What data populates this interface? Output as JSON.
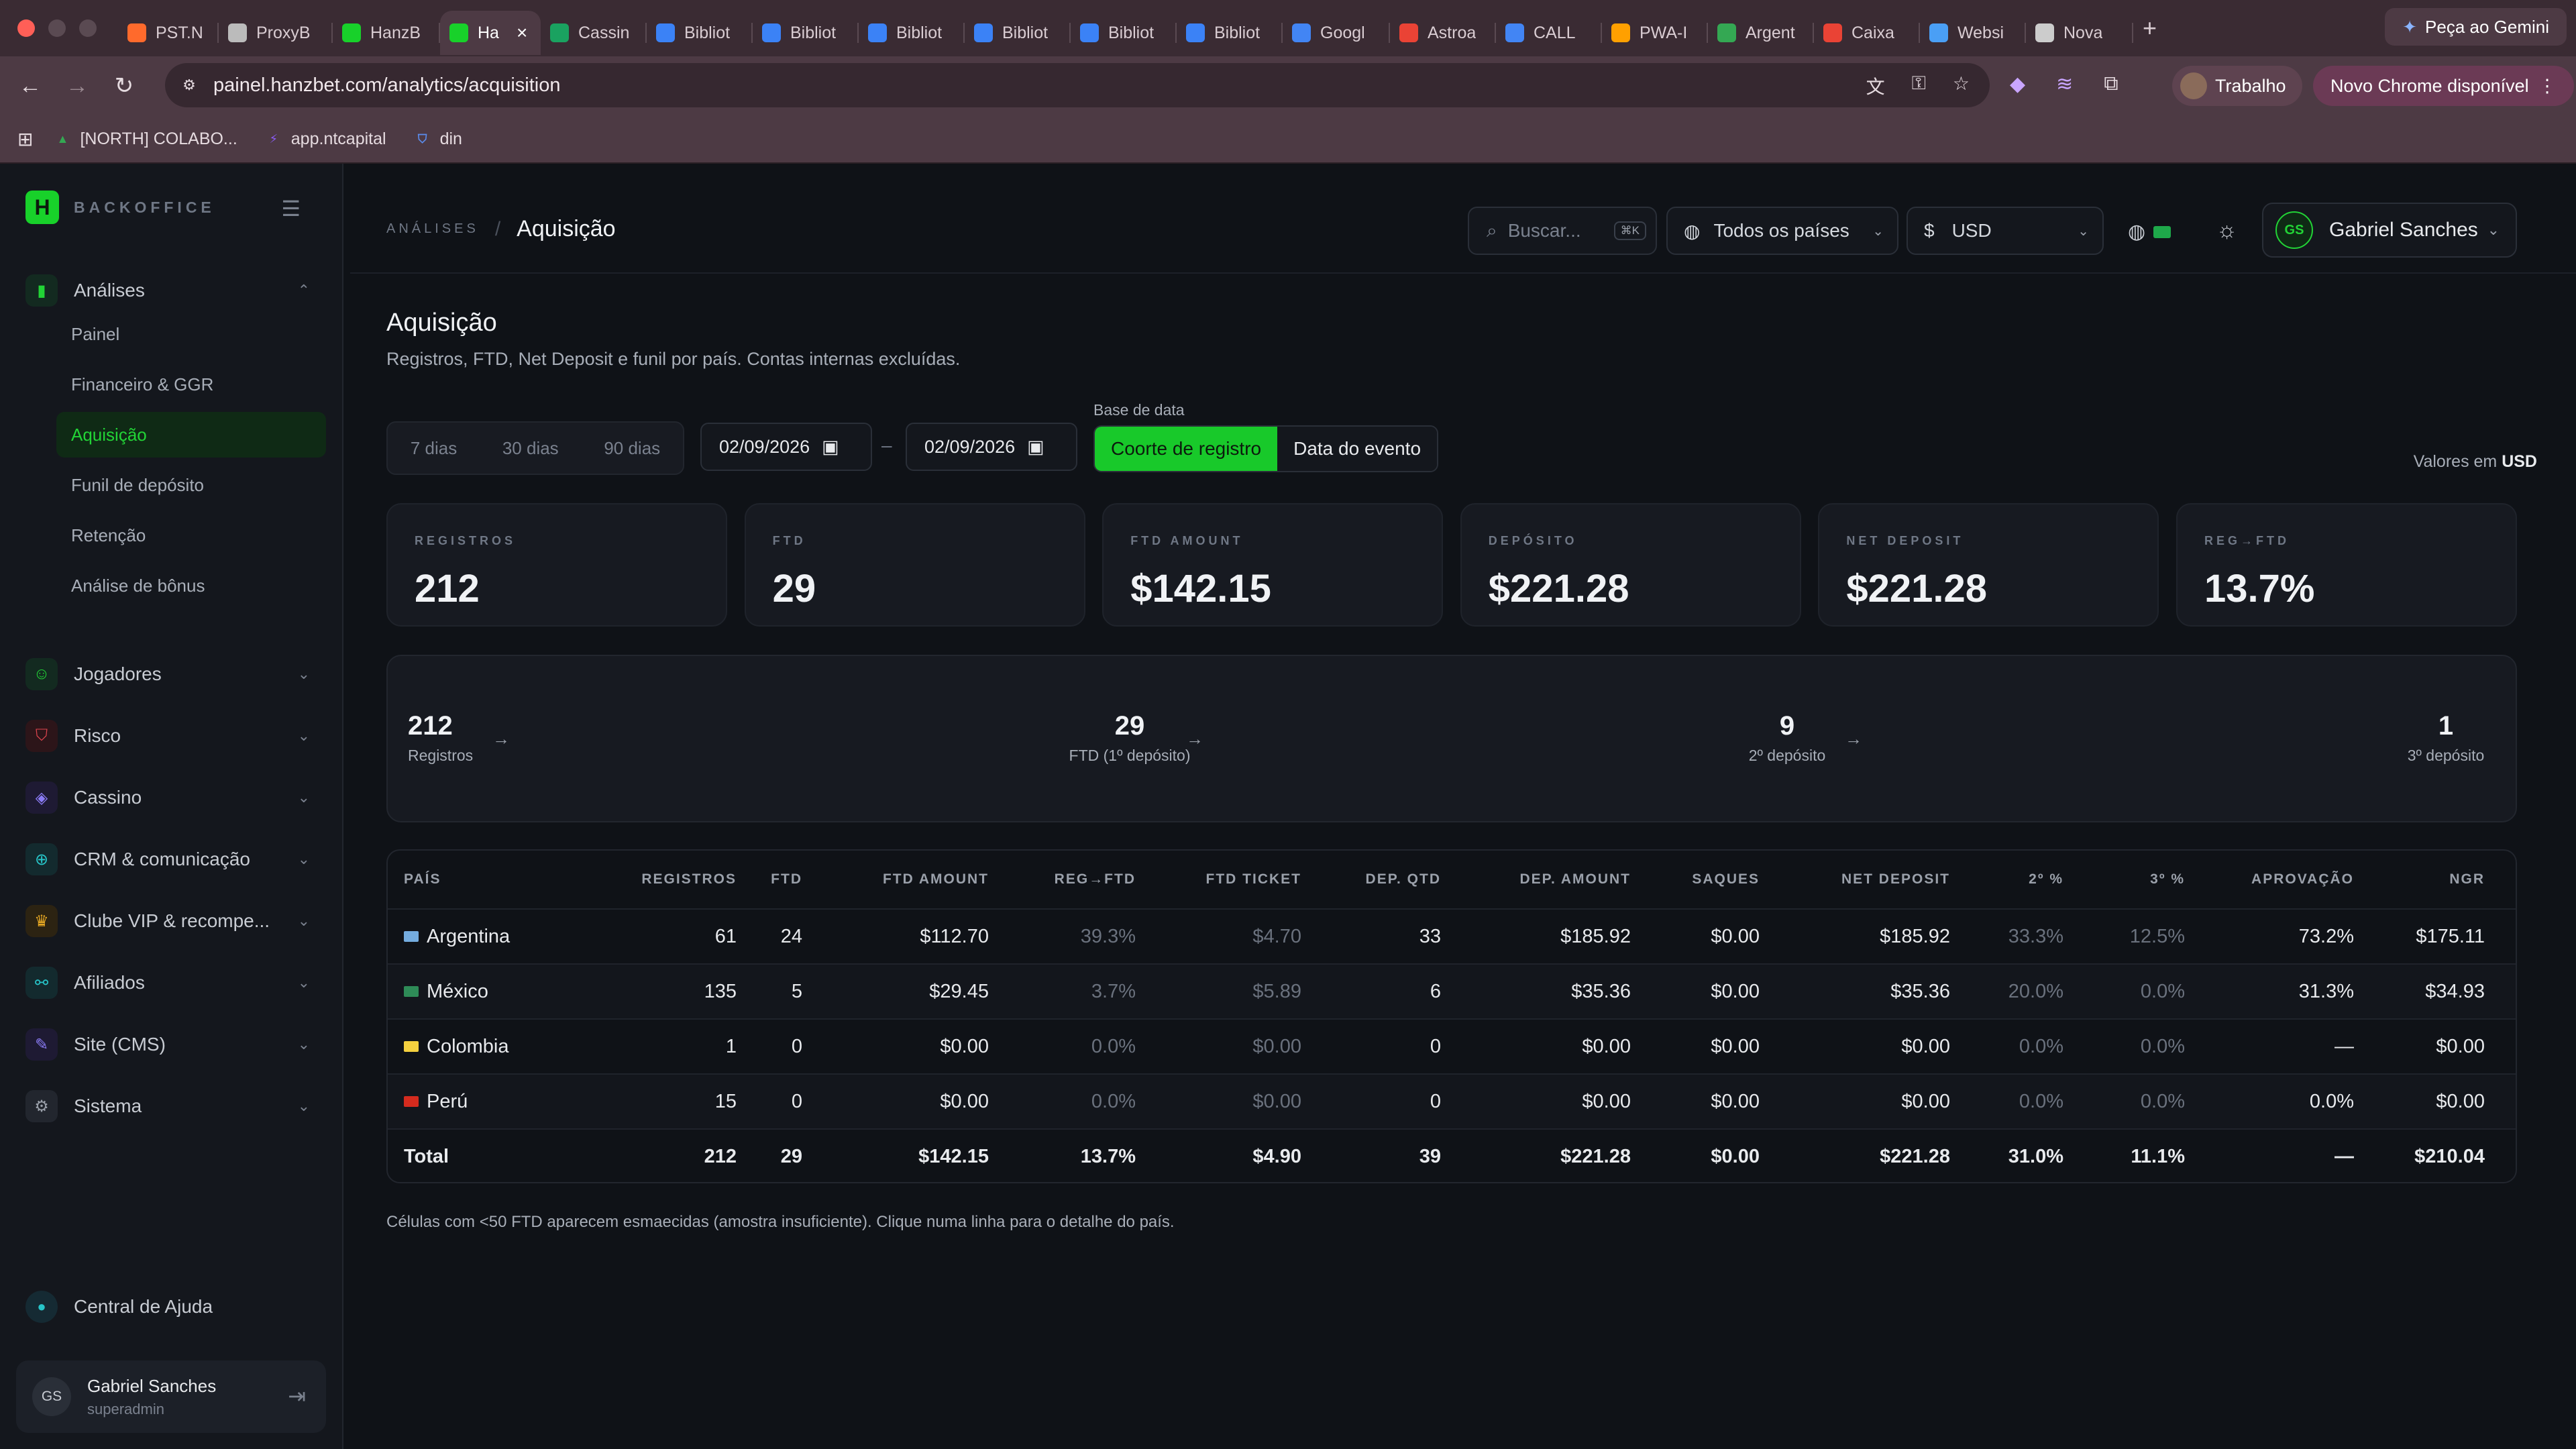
{
  "browser": {
    "tabs": [
      {
        "label": "PST.N",
        "favicon": "fire-icon",
        "color": "#ff6a2c"
      },
      {
        "label": "ProxyB",
        "favicon": "proxy-icon",
        "color": "#bbbbbb"
      },
      {
        "label": "HanzB",
        "favicon": "hanzbet-icon",
        "color": "#18d12a"
      },
      {
        "label": "Ha",
        "favicon": "hanzbet-icon",
        "color": "#18d12a",
        "active": true
      },
      {
        "label": "Cassin",
        "favicon": "sheet-icon",
        "color": "#1aa260"
      },
      {
        "label": "Bibliot",
        "favicon": "meta-icon",
        "color": "#3b82f6"
      },
      {
        "label": "Bibliot",
        "favicon": "meta-icon",
        "color": "#3b82f6"
      },
      {
        "label": "Bibliot",
        "favicon": "meta-icon",
        "color": "#3b82f6"
      },
      {
        "label": "Bibliot",
        "favicon": "meta-icon",
        "color": "#3b82f6"
      },
      {
        "label": "Bibliot",
        "favicon": "meta-icon",
        "color": "#3b82f6"
      },
      {
        "label": "Bibliot",
        "favicon": "meta-icon",
        "color": "#3b82f6"
      },
      {
        "label": "Googl",
        "favicon": "google-ads-icon",
        "color": "#4285f4"
      },
      {
        "label": "Astroa",
        "favicon": "gmail-icon",
        "color": "#ea4335"
      },
      {
        "label": "CALL",
        "favicon": "docs-icon",
        "color": "#4285f4"
      },
      {
        "label": "PWA-I",
        "favicon": "firebase-icon",
        "color": "#ffa000"
      },
      {
        "label": "Argent",
        "favicon": "drive-icon",
        "color": "#34a853"
      },
      {
        "label": "Caixa",
        "favicon": "gmail-icon",
        "color": "#ea4335"
      },
      {
        "label": "Websi",
        "favicon": "web-icon",
        "color": "#4a9ff5"
      },
      {
        "label": "Nova",
        "favicon": "chrome-icon",
        "color": "#cccccc"
      }
    ],
    "new_tab": "+",
    "gemini_label": "Peça ao Gemini",
    "url": "painel.hanzbet.com/analytics/acquisition",
    "profile_label": "Trabalho",
    "update_label": "Novo Chrome disponível",
    "bookmarks": [
      {
        "label": "[NORTH] COLABO...",
        "icon": "drive-icon"
      },
      {
        "label": "app.ntcapital",
        "icon": "bolt-icon"
      },
      {
        "label": "din",
        "icon": "shield-icon"
      }
    ]
  },
  "sidebar": {
    "brand": "BACKOFFICE",
    "groups": [
      {
        "label": "Análises",
        "icon": "chart-icon",
        "icon_color": "#22d336",
        "icon_bg": "#132a20",
        "expanded": true,
        "items": [
          "Painel",
          "Financeiro & GGR",
          "Aquisição",
          "Funil de depósito",
          "Retenção",
          "Análise de bônus"
        ],
        "active_item": "Aquisição"
      },
      {
        "label": "Jogadores",
        "icon": "user-icon",
        "icon_color": "#22d336",
        "icon_bg": "#132a20"
      },
      {
        "label": "Risco",
        "icon": "shield-icon",
        "icon_color": "#e0454f",
        "icon_bg": "#2c1519"
      },
      {
        "label": "Cassino",
        "icon": "gamepad-icon",
        "icon_color": "#8b7cf6",
        "icon_bg": "#1e1a33"
      },
      {
        "label": "CRM & comunicação",
        "icon": "crm-icon",
        "icon_color": "#27c4c8",
        "icon_bg": "#132a2e"
      },
      {
        "label": "Clube VIP & recompe...",
        "icon": "trophy-icon",
        "icon_color": "#e8a923",
        "icon_bg": "#2c2312"
      },
      {
        "label": "Afiliados",
        "icon": "affiliate-icon",
        "icon_color": "#27c4c8",
        "icon_bg": "#132a2e"
      },
      {
        "label": "Site (CMS)",
        "icon": "edit-icon",
        "icon_color": "#8b7cf6",
        "icon_bg": "#1e1a33"
      },
      {
        "label": "Sistema",
        "icon": "gear-icon",
        "icon_color": "#9aa0aa",
        "icon_bg": "#22262e"
      }
    ],
    "help_label": "Central de Ajuda",
    "user": {
      "initials": "GS",
      "name": "Gabriel Sanches",
      "role": "superadmin"
    }
  },
  "topbar": {
    "breadcrumb_parent": "ANÁLISES",
    "breadcrumb_current": "Aquisição",
    "search_placeholder": "Buscar...",
    "search_kbd": "⌘K",
    "country_filter": "Todos os países",
    "currency_symbol": "$",
    "currency": "USD",
    "user_initials": "GS",
    "user_name": "Gabriel Sanches"
  },
  "page": {
    "title": "Aquisição",
    "subtitle": "Registros, FTD, Net Deposit e funil por país. Contas internas excluídas.",
    "ranges": [
      "7 dias",
      "30 dias",
      "90 dias"
    ],
    "date_from": "02/09/2026",
    "date_to": "02/09/2026",
    "date_sep": "–",
    "date_base_label": "Base de data",
    "date_base_options": [
      "Coorte de registro",
      "Data do evento"
    ],
    "date_base_selected": "Coorte de registro",
    "values_in_prefix": "Valores em",
    "values_in_currency": "USD"
  },
  "kpis": [
    {
      "label": "REGISTROS",
      "value": "212"
    },
    {
      "label": "FTD",
      "value": "29"
    },
    {
      "label": "FTD AMOUNT",
      "value": "$142.15"
    },
    {
      "label": "DEPÓSITO",
      "value": "$221.28"
    },
    {
      "label": "NET DEPOSIT",
      "value": "$221.28"
    },
    {
      "label": "REG→FTD",
      "value": "13.7%"
    }
  ],
  "funnel": [
    {
      "value": "212",
      "label": "Registros"
    },
    {
      "value": "29",
      "label": "FTD (1º depósito)"
    },
    {
      "value": "9",
      "label": "2º depósito"
    },
    {
      "value": "1",
      "label": "3º depósito"
    }
  ],
  "table": {
    "columns": [
      "PAÍS",
      "REGISTROS",
      "FTD",
      "FTD AMOUNT",
      "REG→FTD",
      "FTD TICKET",
      "DEP. QTD",
      "DEP. AMOUNT",
      "SAQUES",
      "NET DEPOSIT",
      "2º %",
      "3º %",
      "APROVAÇÃO",
      "NGR"
    ],
    "rows": [
      {
        "country": "Argentina",
        "flag": "#74acdf",
        "cells": [
          "61",
          "24",
          "$112.70",
          "39.3%",
          "$4.70",
          "33",
          "$185.92",
          "$0.00",
          "$185.92",
          "33.3%",
          "12.5%",
          "73.2%",
          "$175.11"
        ]
      },
      {
        "country": "México",
        "flag": "#2e8b57",
        "cells": [
          "135",
          "5",
          "$29.45",
          "3.7%",
          "$5.89",
          "6",
          "$35.36",
          "$0.00",
          "$35.36",
          "20.0%",
          "0.0%",
          "31.3%",
          "$34.93"
        ]
      },
      {
        "country": "Colombia",
        "flag": "#f4d03f",
        "cells": [
          "1",
          "0",
          "$0.00",
          "0.0%",
          "$0.00",
          "0",
          "$0.00",
          "$0.00",
          "$0.00",
          "0.0%",
          "0.0%",
          "—",
          "$0.00"
        ]
      },
      {
        "country": "Perú",
        "flag": "#d52b1e",
        "cells": [
          "15",
          "0",
          "$0.00",
          "0.0%",
          "$0.00",
          "0",
          "$0.00",
          "$0.00",
          "$0.00",
          "0.0%",
          "0.0%",
          "0.0%",
          "$0.00"
        ]
      }
    ],
    "total": {
      "label": "Total",
      "cells": [
        "212",
        "29",
        "$142.15",
        "13.7%",
        "$4.90",
        "39",
        "$221.28",
        "$0.00",
        "$221.28",
        "31.0%",
        "11.1%",
        "—",
        "$210.04"
      ]
    },
    "footnote": "Células com <50 FTD aparecem esmaecidas (amostra insuficiente). Clique numa linha para o detalhe do país."
  }
}
